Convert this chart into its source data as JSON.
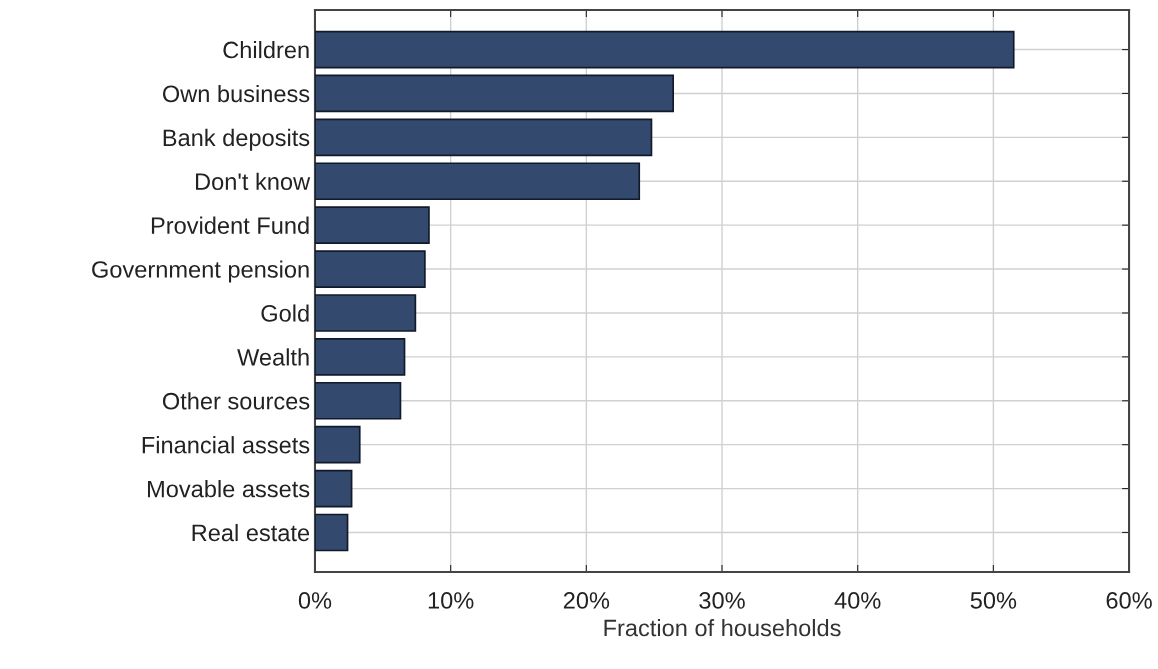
{
  "chart_data": {
    "type": "bar",
    "orientation": "horizontal",
    "xlabel": "Fraction of households",
    "categories": [
      "Children",
      "Own business",
      "Bank deposits",
      "Don't know",
      "Provident Fund",
      "Government pension",
      "Gold",
      "Wealth",
      "Other sources",
      "Financial assets",
      "Movable assets",
      "Real estate"
    ],
    "values": [
      51.5,
      26.4,
      24.8,
      23.9,
      8.4,
      8.1,
      7.4,
      6.6,
      6.3,
      3.3,
      2.7,
      2.4
    ],
    "color": "#34496e",
    "xlim": [
      0,
      60
    ],
    "xticks": [
      {
        "value": 0,
        "label": "0%"
      },
      {
        "value": 10,
        "label": "10%"
      },
      {
        "value": 20,
        "label": "20%"
      },
      {
        "value": 30,
        "label": "30%"
      },
      {
        "value": 40,
        "label": "40%"
      },
      {
        "value": 50,
        "label": "50%"
      },
      {
        "value": 60,
        "label": "60%"
      }
    ],
    "grid": true
  }
}
